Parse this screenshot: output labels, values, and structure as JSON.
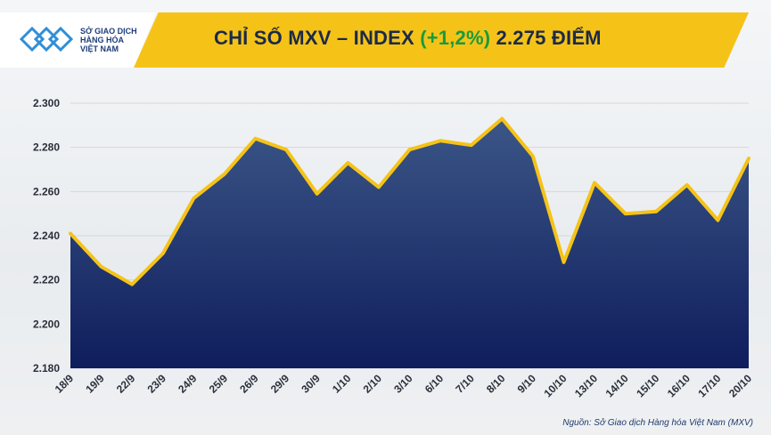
{
  "header": {
    "logo_lines": [
      "SỞ GIAO DỊCH",
      "HÀNG HÓA",
      "VIỆT NAM"
    ],
    "title_prefix": "CHỈ SỐ MXV – INDEX ",
    "title_change": "(+1,2%)",
    "title_suffix": " 2.275 ĐIỂM"
  },
  "source": "Nguồn: Sở Giao dịch Hàng hóa Việt Nam (MXV)",
  "colors": {
    "line": "#f5c318",
    "fill_top": "#3b5687",
    "fill_bottom": "#0f1d5c",
    "change_green": "#1a9a3c"
  },
  "chart_data": {
    "type": "area",
    "categories": [
      "18/9",
      "19/9",
      "22/9",
      "23/9",
      "24/9",
      "25/9",
      "26/9",
      "29/9",
      "30/9",
      "1/10",
      "2/10",
      "3/10",
      "6/10",
      "7/10",
      "8/10",
      "9/10",
      "10/10",
      "13/10",
      "14/10",
      "15/10",
      "16/10",
      "17/10",
      "20/10"
    ],
    "values": [
      2241,
      2226,
      2218,
      2232,
      2257,
      2268,
      2284,
      2279,
      2259,
      2273,
      2262,
      2279,
      2283,
      2281,
      2293,
      2276,
      2228,
      2264,
      2250,
      2251,
      2263,
      2247,
      2275
    ],
    "ylim": [
      2180,
      2300
    ],
    "yticks": [
      2180,
      2200,
      2220,
      2240,
      2260,
      2280,
      2300
    ],
    "ytick_labels": [
      "2.180",
      "2.200",
      "2.220",
      "2.240",
      "2.260",
      "2.280",
      "2.300"
    ],
    "grid": true
  }
}
